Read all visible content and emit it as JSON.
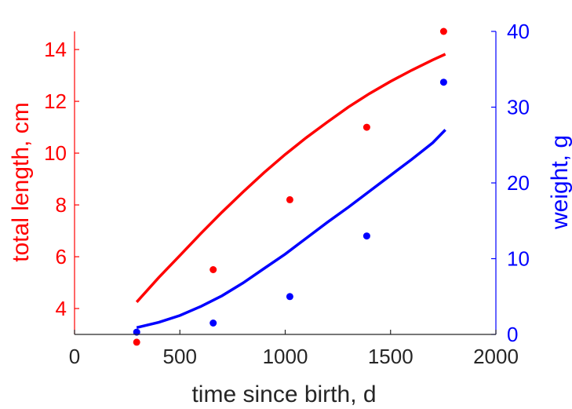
{
  "chart_data": {
    "type": "scatter",
    "title": "",
    "xlabel": "time since birth, d",
    "xlim": [
      0,
      2000
    ],
    "xticks": [
      0,
      500,
      1000,
      1500,
      2000
    ],
    "left_axis": {
      "label": "total length, cm",
      "color": "#ff0000",
      "ylim": [
        3.0,
        14.7
      ],
      "ticks": [
        4,
        6,
        8,
        10,
        12,
        14
      ]
    },
    "right_axis": {
      "label": "weight, g",
      "color": "#0000ff",
      "ylim": [
        0,
        40
      ],
      "ticks": [
        0,
        10,
        20,
        30,
        40
      ]
    },
    "grid": false,
    "series": [
      {
        "axis": "left",
        "color": "#ff0000",
        "points": {
          "x": [
            295,
            658,
            1022,
            1387,
            1752
          ],
          "y": [
            2.7,
            5.5,
            8.2,
            11.0,
            14.7
          ]
        },
        "fit": {
          "x": [
            295,
            400,
            500,
            600,
            700,
            800,
            900,
            1000,
            1100,
            1200,
            1300,
            1400,
            1500,
            1600,
            1700,
            1760
          ],
          "y": [
            4.25,
            5.2,
            6.05,
            6.9,
            7.72,
            8.5,
            9.25,
            9.95,
            10.6,
            11.2,
            11.78,
            12.3,
            12.77,
            13.2,
            13.6,
            13.82
          ]
        }
      },
      {
        "axis": "right",
        "color": "#0000ff",
        "points": {
          "x": [
            295,
            658,
            1022,
            1387,
            1752
          ],
          "y": [
            0.3,
            1.5,
            5.0,
            13.0,
            33.3
          ]
        },
        "fit": {
          "x": [
            295,
            400,
            500,
            600,
            700,
            800,
            900,
            1000,
            1100,
            1200,
            1300,
            1400,
            1500,
            1600,
            1700,
            1760
          ],
          "y": [
            0.9,
            1.6,
            2.5,
            3.7,
            5.1,
            6.8,
            8.7,
            10.6,
            12.7,
            14.8,
            16.8,
            18.9,
            21.0,
            23.1,
            25.3,
            27.0
          ]
        }
      }
    ]
  }
}
